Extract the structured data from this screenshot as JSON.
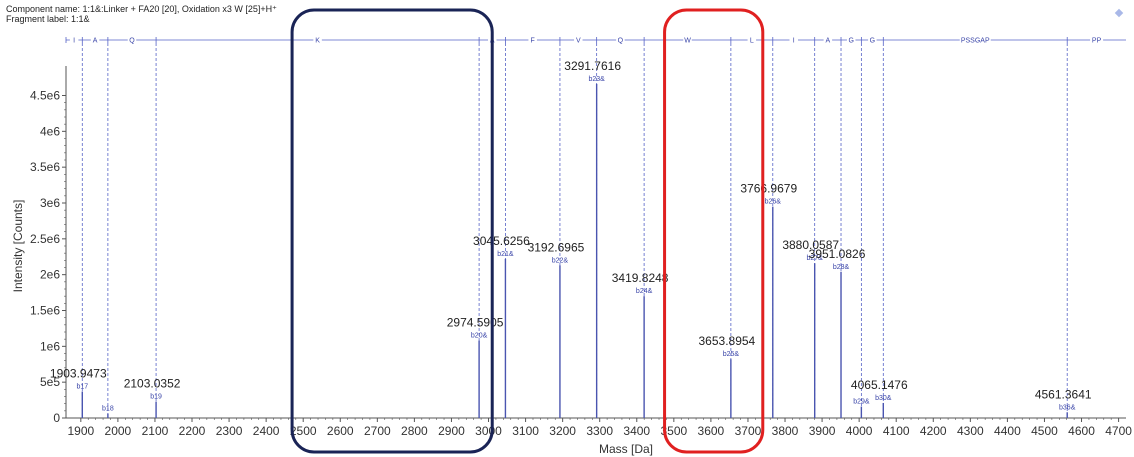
{
  "header": {
    "component": "Component name: 1:1&:Linker + FA20 [20], Oxidation x3 W [25]+H⁺",
    "fragment": "Fragment label: 1:1&"
  },
  "colors": {
    "stick": "#4a55b0",
    "dash": "#5562c6",
    "box_navy": "#1a2456",
    "box_red": "#e02020",
    "axis": "#555555"
  },
  "chart_data": {
    "type": "bar",
    "xlabel": "Mass [Da]",
    "ylabel": "Intensity [Counts]",
    "xlim": [
      1860,
      4720
    ],
    "ylim": [
      0,
      4800000
    ],
    "xticks": [
      1900,
      2000,
      2100,
      2200,
      2300,
      2400,
      2500,
      2600,
      2700,
      2800,
      2900,
      3000,
      3100,
      3200,
      3300,
      3400,
      3500,
      3600,
      3700,
      3800,
      3900,
      4000,
      4100,
      4200,
      4300,
      4400,
      4500,
      4600,
      4700
    ],
    "yticks": [
      {
        "v": 0,
        "t": "0"
      },
      {
        "v": 500000,
        "t": "5e5"
      },
      {
        "v": 1000000,
        "t": "1e6"
      },
      {
        "v": 1500000,
        "t": "1.5e6"
      },
      {
        "v": 2000000,
        "t": "2e6"
      },
      {
        "v": 2500000,
        "t": "2.5e6"
      },
      {
        "v": 3000000,
        "t": "3e6"
      },
      {
        "v": 3500000,
        "t": "3.5e6"
      },
      {
        "v": 4000000,
        "t": "4e6"
      },
      {
        "v": 4500000,
        "t": "4.5e6"
      }
    ],
    "peaks": [
      {
        "mass": 1903.9473,
        "intensity": 370000,
        "label": "1903.9473",
        "ion": "b17"
      },
      {
        "mass": 1973.0,
        "intensity": 60000,
        "label": "",
        "ion": "b18"
      },
      {
        "mass": 2103.0352,
        "intensity": 230000,
        "label": "2103.0352",
        "ion": "b19"
      },
      {
        "mass": 2974.5905,
        "intensity": 1080000,
        "label": "2974.5905",
        "ion": "b20&"
      },
      {
        "mass": 3045.6256,
        "intensity": 2220000,
        "label": "3045.6256",
        "ion": "b21&"
      },
      {
        "mass": 3192.6965,
        "intensity": 2130000,
        "label": "3192.6965",
        "ion": "b22&"
      },
      {
        "mass": 3291.7616,
        "intensity": 4660000,
        "label": "3291.7616",
        "ion": "b23&"
      },
      {
        "mass": 3419.8248,
        "intensity": 1700000,
        "label": "3419.8248",
        "ion": "b24&"
      },
      {
        "mass": 3653.8954,
        "intensity": 820000,
        "label": "3653.8954",
        "ion": "b25&"
      },
      {
        "mass": 3766.9679,
        "intensity": 2950000,
        "label": "3766.9679",
        "ion": "b26&"
      },
      {
        "mass": 3880.0587,
        "intensity": 2160000,
        "label": "3880.0587",
        "ion": "b27&"
      },
      {
        "mass": 3951.0826,
        "intensity": 2040000,
        "label": "3951.0826",
        "ion": "b28&"
      },
      {
        "mass": 4006.0,
        "intensity": 160000,
        "label": "",
        "ion": "b29&"
      },
      {
        "mass": 4065.1476,
        "intensity": 210000,
        "label": "4065.1476",
        "ion": "b30&"
      },
      {
        "mass": 4561.3641,
        "intensity": 80000,
        "label": "4561.3641",
        "ion": "b36&"
      }
    ],
    "residue_ticks": [
      {
        "mass": 1860,
        "label": "I"
      },
      {
        "mass": 1903.9473,
        "label": "A"
      },
      {
        "mass": 1973.0,
        "label": "Q"
      },
      {
        "mass": 2103.0352,
        "label": "K"
      },
      {
        "mass": 2974.5905,
        "label": "A"
      },
      {
        "mass": 3045.6256,
        "label": "F"
      },
      {
        "mass": 3192.6965,
        "label": "V"
      },
      {
        "mass": 3291.7616,
        "label": "Q"
      },
      {
        "mass": 3419.8248,
        "label": "W"
      },
      {
        "mass": 3653.8954,
        "label": "L"
      },
      {
        "mass": 3766.9679,
        "label": "I"
      },
      {
        "mass": 3880.0587,
        "label": "A"
      },
      {
        "mass": 3951.0826,
        "label": "G"
      },
      {
        "mass": 4006.0,
        "label": "G"
      },
      {
        "mass": 4065.1476,
        "label": "PSSGAP"
      },
      {
        "mass": 4561.3641,
        "label": "PP"
      }
    ],
    "highlight_boxes": [
      {
        "x_from": 2470,
        "x_to": 3010,
        "color": "navy"
      },
      {
        "x_from": 3475,
        "x_to": 3740,
        "color": "red"
      }
    ]
  }
}
